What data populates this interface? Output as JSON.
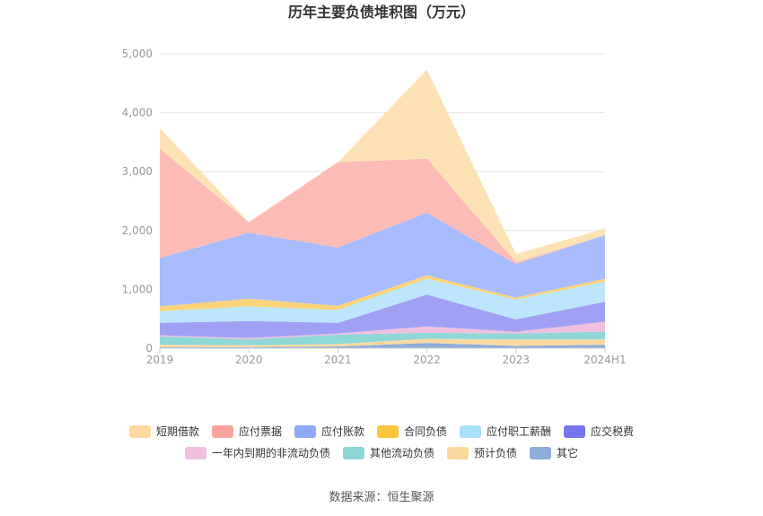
{
  "chart_data": {
    "type": "area",
    "stacked": true,
    "title": "历年主要负债堆积图（万元）",
    "categories": [
      "2019",
      "2020",
      "2021",
      "2022",
      "2023",
      "2024H1"
    ],
    "yticks": [
      "0",
      "1,000",
      "2,000",
      "3,000",
      "4,000",
      "5,000"
    ],
    "ylim": [
      0,
      5000
    ],
    "source": "数据来源：恒生聚源",
    "series": [
      {
        "name": "其它",
        "color": "#8eadd9",
        "values": [
          20,
          20,
          30,
          90,
          40,
          60
        ]
      },
      {
        "name": "预计负债",
        "color": "#fdd9a0",
        "values": [
          40,
          30,
          40,
          70,
          110,
          90
        ]
      },
      {
        "name": "其他流动负债",
        "color": "#8dd7d7",
        "values": [
          140,
          100,
          160,
          100,
          100,
          130
        ]
      },
      {
        "name": "一年内到期的非流动负债",
        "color": "#f0bfe0",
        "values": [
          20,
          20,
          20,
          110,
          30,
          170
        ]
      },
      {
        "name": "应交税费",
        "color": "#a0a1f5",
        "values": [
          210,
          290,
          180,
          540,
          210,
          340
        ]
      },
      {
        "name": "应付职工薪酬",
        "color": "#bbe6fb",
        "values": [
          200,
          250,
          220,
          270,
          340,
          340
        ]
      },
      {
        "name": "合同负债",
        "color": "#fdd37a",
        "values": [
          80,
          130,
          70,
          60,
          30,
          50
        ]
      },
      {
        "name": "应付账款",
        "color": "#a8bcff",
        "values": [
          820,
          1120,
          990,
          1060,
          570,
          740
        ]
      },
      {
        "name": "应付票据",
        "color": "#fdbbb5",
        "values": [
          1860,
          180,
          1450,
          920,
          30,
          0
        ]
      },
      {
        "name": "短期借款",
        "color": "#fde2b5",
        "values": [
          350,
          0,
          0,
          1510,
          140,
          110
        ]
      }
    ],
    "legend": [
      {
        "name": "短期借款",
        "color": "#fdd9a0"
      },
      {
        "name": "应付票据",
        "color": "#f9a59e"
      },
      {
        "name": "应付账款",
        "color": "#8ea8fa"
      },
      {
        "name": "合同负债",
        "color": "#fec43c"
      },
      {
        "name": "应付职工薪酬",
        "color": "#a9e1fb"
      },
      {
        "name": "应交税费",
        "color": "#7575f0"
      },
      {
        "name": "一年内到期的非流动负债",
        "color": "#f0bfe0"
      },
      {
        "name": "其他流动负债",
        "color": "#8dd7d7"
      },
      {
        "name": "预计负债",
        "color": "#fdd9a0"
      },
      {
        "name": "其它",
        "color": "#8eadd9"
      }
    ]
  }
}
